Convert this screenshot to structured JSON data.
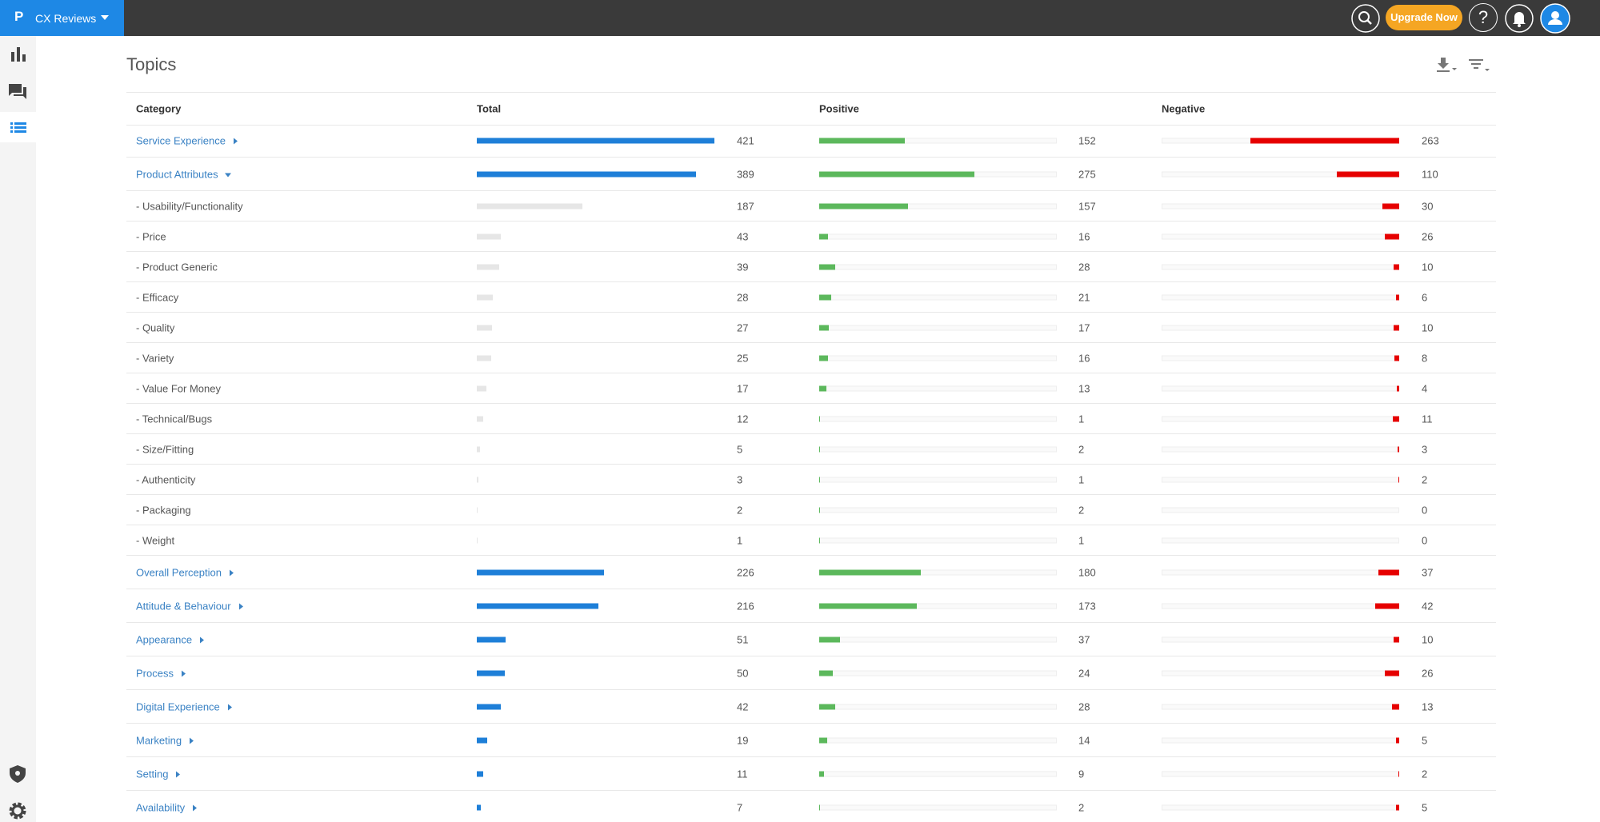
{
  "header": {
    "logo": "P",
    "app_name": "CX Reviews",
    "upgrade_button": "Upgrade Now",
    "help_icon": "?"
  },
  "page": {
    "title": "Topics"
  },
  "table": {
    "columns": [
      "Category",
      "Total",
      "Positive",
      "Negative"
    ],
    "topics": [
      {
        "name": "Service Experience",
        "total": 421,
        "positive": 152,
        "negative": 263
      },
      {
        "name": "Product Attributes",
        "total": 389,
        "positive": 275,
        "negative": 110,
        "subtopics": [
          {
            "name": "- Usability/Functionality",
            "total": 187,
            "positive": 157,
            "negative": 30
          },
          {
            "name": "- Price",
            "total": 43,
            "positive": 16,
            "negative": 26
          },
          {
            "name": "- Product Generic",
            "total": 39,
            "positive": 28,
            "negative": 10
          },
          {
            "name": "- Efficacy",
            "total": 28,
            "positive": 21,
            "negative": 6
          },
          {
            "name": "- Quality",
            "total": 27,
            "positive": 17,
            "negative": 10
          },
          {
            "name": "- Variety",
            "total": 25,
            "positive": 16,
            "negative": 8
          },
          {
            "name": "- Value For Money",
            "total": 17,
            "positive": 13,
            "negative": 4
          },
          {
            "name": "- Technical/Bugs",
            "total": 12,
            "positive": 1,
            "negative": 11
          },
          {
            "name": "- Size/Fitting",
            "total": 5,
            "positive": 2,
            "negative": 3
          },
          {
            "name": "- Authenticity",
            "total": 3,
            "positive": 1,
            "negative": 2
          },
          {
            "name": "- Packaging",
            "total": 2,
            "positive": 2,
            "negative": 0
          },
          {
            "name": "- Weight",
            "total": 1,
            "positive": 1,
            "negative": 0
          }
        ]
      },
      {
        "name": "Overall Perception",
        "total": 226,
        "positive": 180,
        "negative": 37
      },
      {
        "name": "Attitude & Behaviour",
        "total": 216,
        "positive": 173,
        "negative": 42
      },
      {
        "name": "Appearance",
        "total": 51,
        "positive": 37,
        "negative": 10
      },
      {
        "name": "Process",
        "total": 50,
        "positive": 24,
        "negative": 26
      },
      {
        "name": "Digital Experience",
        "total": 42,
        "positive": 28,
        "negative": 13
      },
      {
        "name": "Marketing",
        "total": 19,
        "positive": 14,
        "negative": 5
      },
      {
        "name": "Setting",
        "total": 11,
        "positive": 9,
        "negative": 2
      },
      {
        "name": "Availability",
        "total": 7,
        "positive": 2,
        "negative": 5
      }
    ]
  }
}
